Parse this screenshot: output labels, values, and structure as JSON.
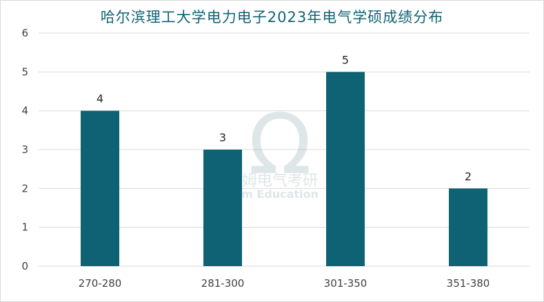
{
  "chart_data": {
    "type": "bar",
    "title": "哈尔滨理工大学电力电子2023年电气学硕成绩分布",
    "categories": [
      "270-280",
      "281-300",
      "301-350",
      "351-380"
    ],
    "values": [
      4,
      3,
      5,
      2
    ],
    "xlabel": "",
    "ylabel": "",
    "ylim": [
      0,
      6
    ],
    "yticks": [
      0,
      1,
      2,
      3,
      4,
      5,
      6
    ],
    "grid": true,
    "legend": "none",
    "data_labels": true,
    "colors": {
      "bar": "#0e6273",
      "grid": "#d9d9d9",
      "title": "#0e6273"
    }
  },
  "watermark": {
    "symbol": "Ω",
    "text_cn": "姆电气考研",
    "text_en": "m Education"
  }
}
